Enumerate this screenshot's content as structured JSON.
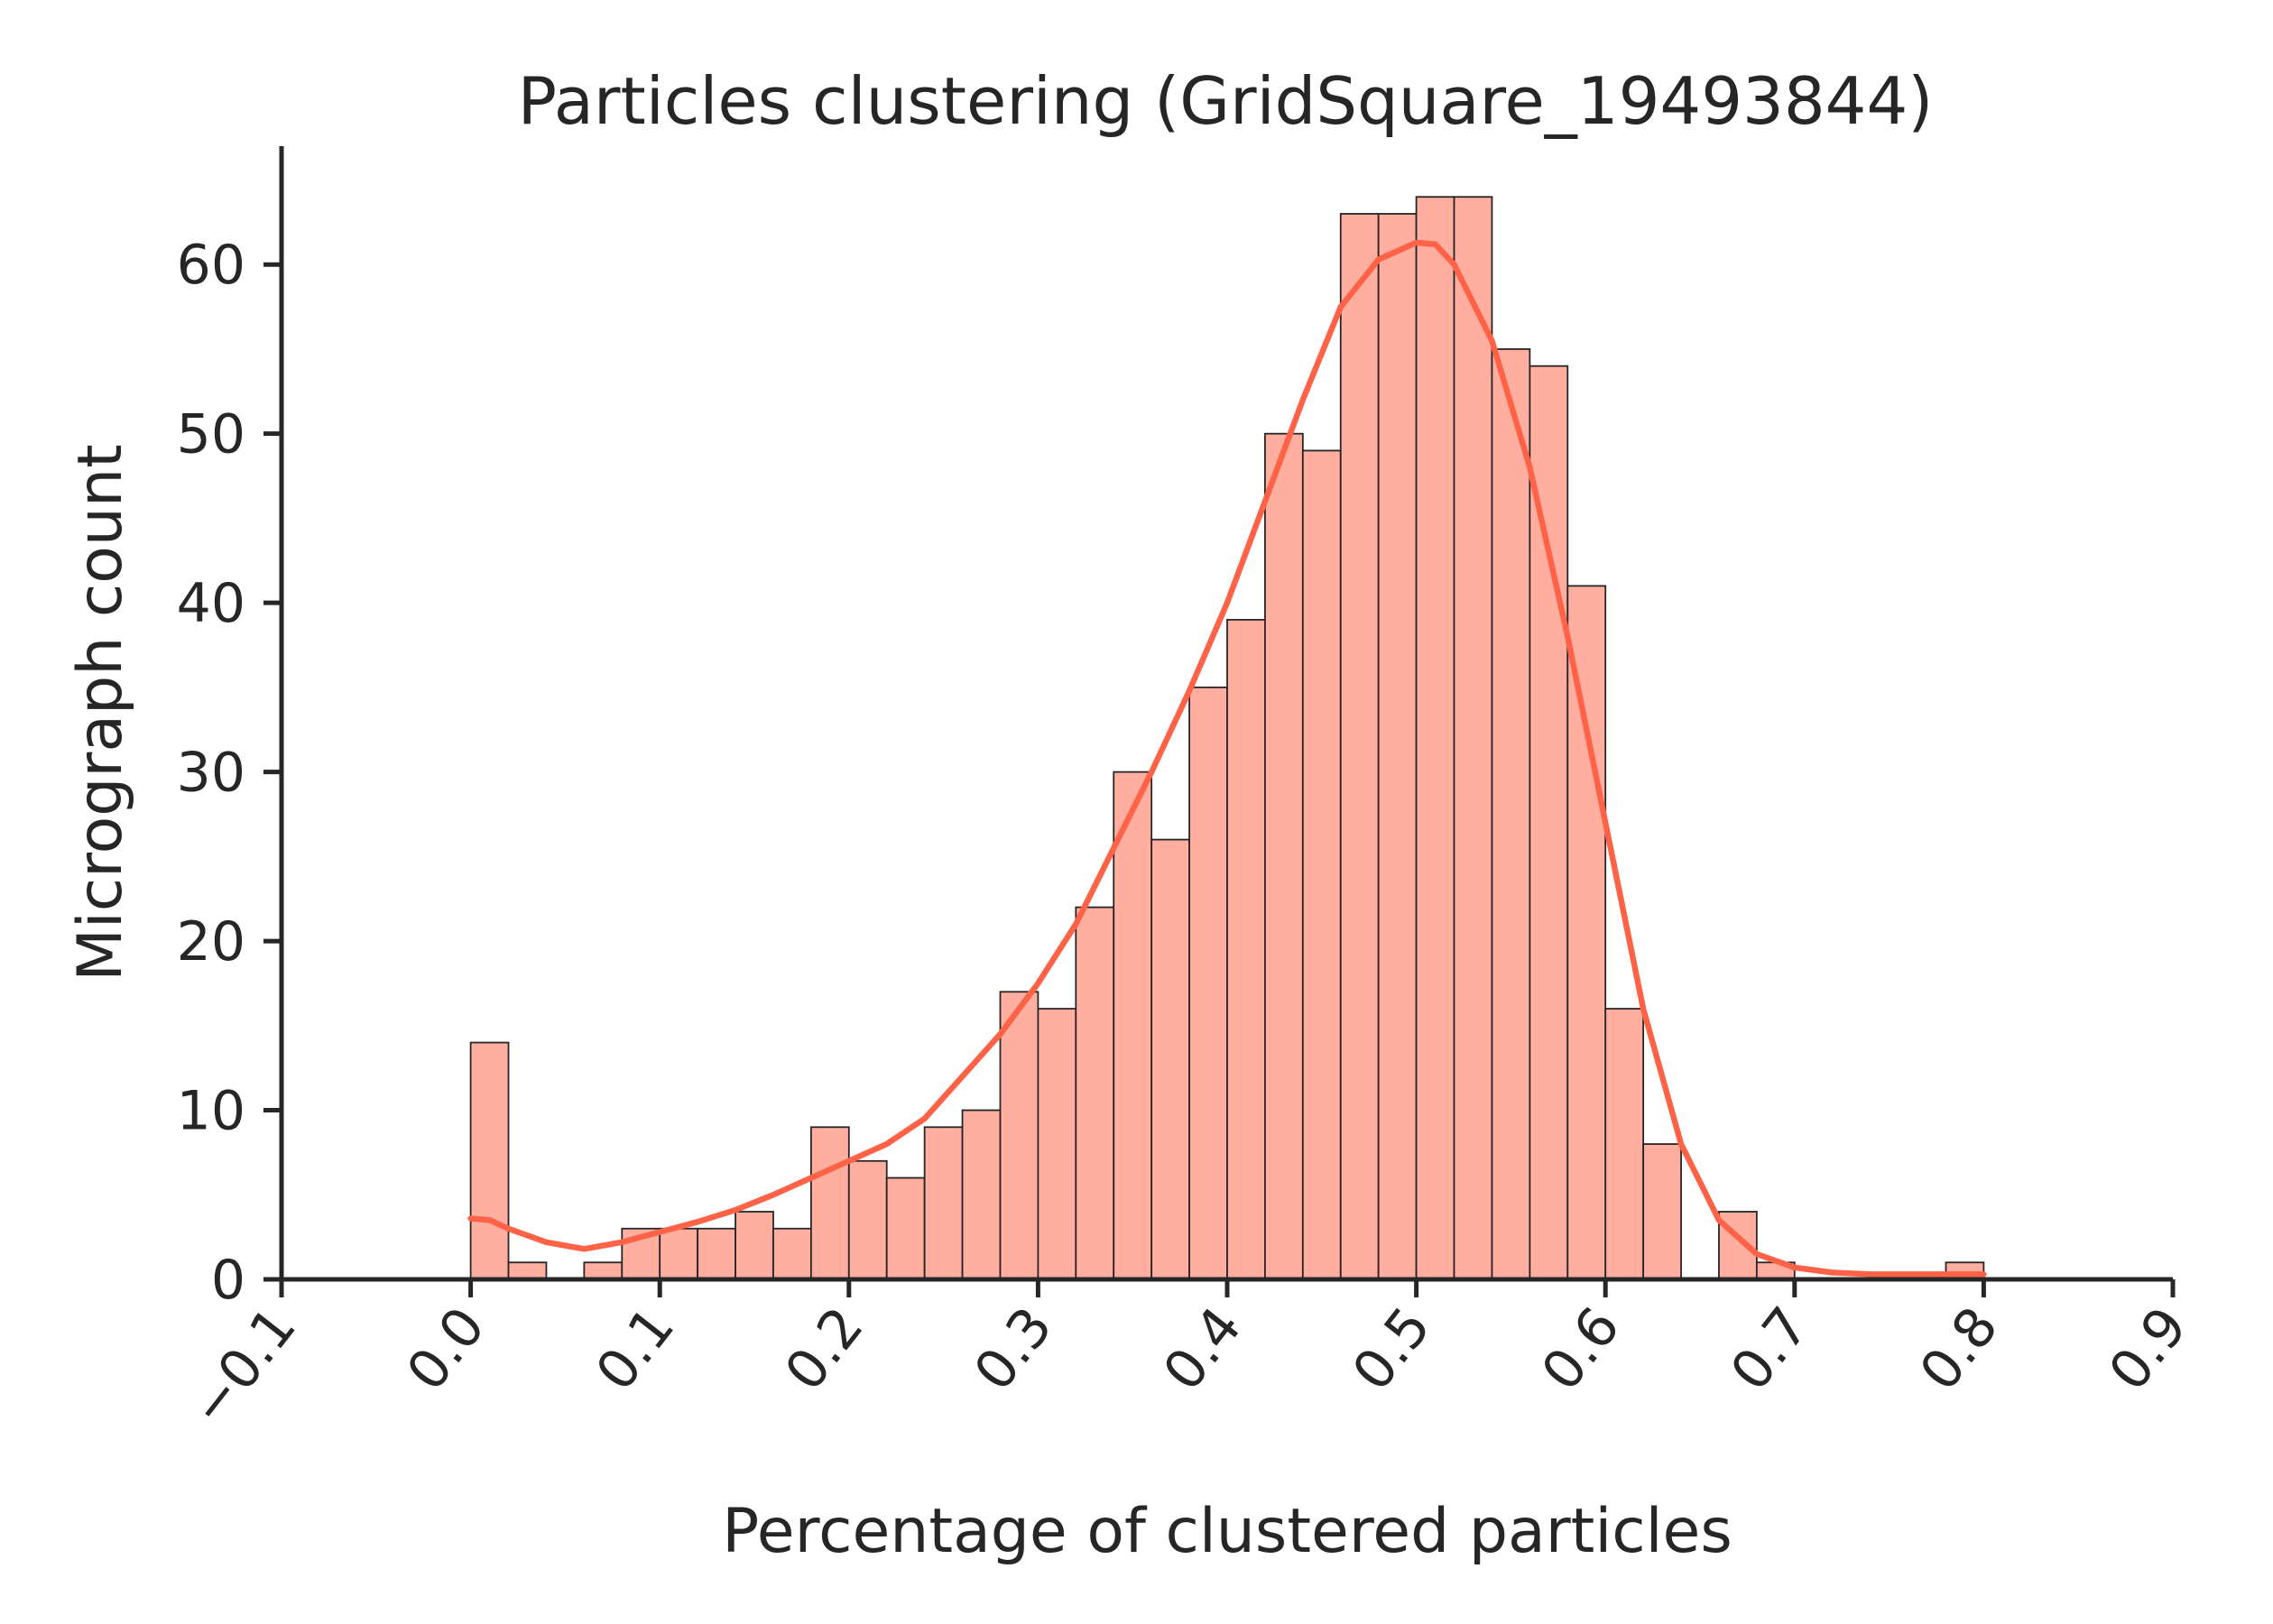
{
  "chart_data": {
    "type": "bar",
    "title": "Particles clustering (GridSquare_19493844)",
    "xlabel": "Percentage of clustered particles",
    "ylabel": "Micrograph count",
    "xlim": [
      -0.1,
      0.9
    ],
    "ylim": [
      0,
      67
    ],
    "x_ticks": [
      -0.1,
      0.0,
      0.1,
      0.2,
      0.3,
      0.4,
      0.5,
      0.6,
      0.7,
      0.8,
      0.9
    ],
    "x_tick_labels": [
      "−0.1",
      "0.0",
      "0.1",
      "0.2",
      "0.3",
      "0.4",
      "0.5",
      "0.6",
      "0.7",
      "0.8",
      "0.9"
    ],
    "y_ticks": [
      0,
      10,
      20,
      30,
      40,
      50,
      60
    ],
    "y_tick_labels": [
      "0",
      "10",
      "20",
      "30",
      "40",
      "50",
      "60"
    ],
    "bin_start": 0.0,
    "bin_width": 0.02,
    "values": [
      14,
      1,
      0,
      1,
      3,
      3,
      3,
      4,
      3,
      9,
      7,
      6,
      9,
      10,
      17,
      16,
      22,
      30,
      26,
      35,
      39,
      50,
      49,
      63,
      63,
      64,
      64,
      55,
      54,
      41,
      16,
      8,
      0,
      4,
      1,
      0,
      0,
      0,
      0,
      1
    ],
    "kde_line": {
      "x": [
        0.0,
        0.01,
        0.02,
        0.04,
        0.06,
        0.08,
        0.1,
        0.12,
        0.14,
        0.16,
        0.18,
        0.2,
        0.22,
        0.24,
        0.26,
        0.28,
        0.3,
        0.32,
        0.34,
        0.36,
        0.38,
        0.4,
        0.42,
        0.44,
        0.46,
        0.48,
        0.5,
        0.51,
        0.52,
        0.54,
        0.56,
        0.58,
        0.6,
        0.62,
        0.64,
        0.66,
        0.68,
        0.7,
        0.72,
        0.74,
        0.76,
        0.78,
        0.8
      ],
      "y": [
        3.6,
        3.5,
        3.0,
        2.2,
        1.8,
        2.2,
        2.8,
        3.4,
        4.1,
        5.0,
        6.0,
        7.0,
        8.0,
        9.5,
        12.0,
        14.5,
        17.5,
        21.0,
        25.5,
        30.0,
        34.8,
        40.0,
        46.0,
        52.0,
        57.5,
        60.3,
        61.3,
        61.2,
        60.0,
        55.5,
        48.0,
        38.0,
        27.0,
        16.0,
        8.0,
        3.5,
        1.5,
        0.7,
        0.4,
        0.3,
        0.3,
        0.3,
        0.3
      ]
    },
    "bar_color": "#ffaea0",
    "bar_edge_color": "#262626",
    "line_color": "#ff6347",
    "grid": false,
    "legend": false
  }
}
